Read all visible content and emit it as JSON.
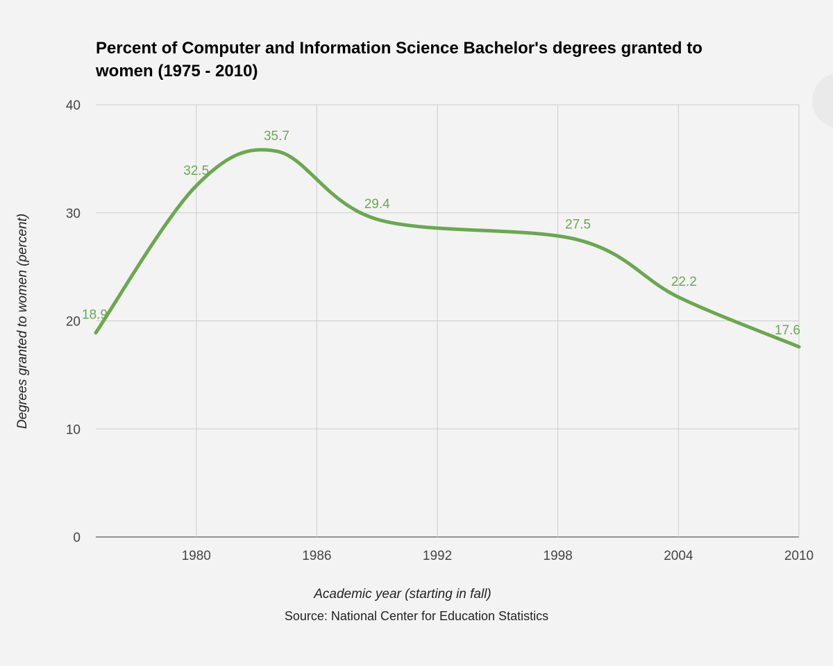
{
  "chart_data": {
    "type": "line",
    "title_lines": [
      "Percent of Computer and Information Science Bachelor's degrees granted to",
      "women (1975 - 2010)"
    ],
    "xlabel": "Academic year (starting in fall)",
    "ylabel": "Degrees granted to women (percent)",
    "source": "Source: National Center for Education Statistics",
    "xlim": [
      1975,
      2010
    ],
    "ylim": [
      0,
      40
    ],
    "x_ticks": [
      1980,
      1986,
      1992,
      1998,
      2004,
      2010
    ],
    "x_tick_labels": [
      "1980",
      "1986",
      "1992",
      "1998",
      "2004",
      "2010"
    ],
    "y_ticks": [
      0,
      10,
      20,
      30,
      40
    ],
    "y_tick_labels": [
      "0",
      "10",
      "20",
      "30",
      "40"
    ],
    "grid": true,
    "smooth": true,
    "series": [
      {
        "name": "Degrees granted to women (percent)",
        "color": "#6aa84f",
        "x": [
          1975,
          1980,
          1984,
          1989,
          1999,
          2004,
          2010
        ],
        "values": [
          18.9,
          32.5,
          35.7,
          29.4,
          27.5,
          22.2,
          17.6
        ],
        "labels": [
          "18.9",
          "32.5",
          "35.7",
          "29.4",
          "27.5",
          "22.2",
          "17.6"
        ]
      }
    ]
  }
}
